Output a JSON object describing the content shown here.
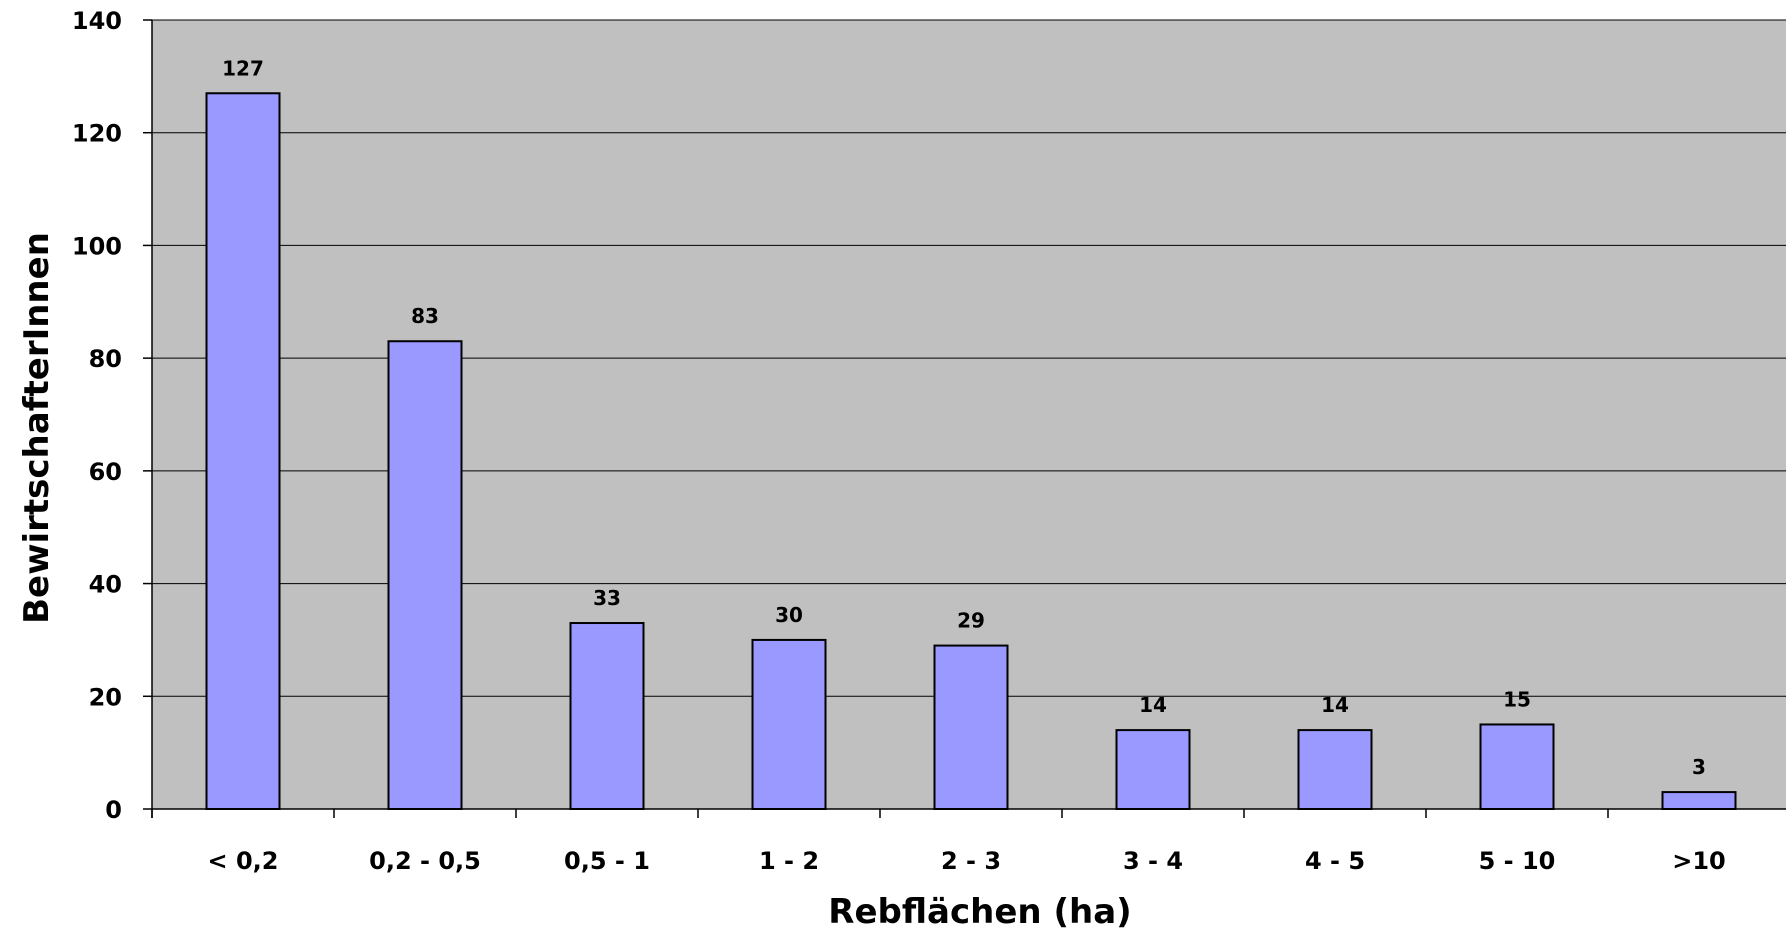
{
  "chart_data": {
    "type": "bar",
    "categories": [
      "< 0,2",
      "0,2 - 0,5",
      "0,5 - 1",
      "1 - 2",
      "2 - 3",
      "3 - 4",
      "4 - 5",
      "5 - 10",
      ">10"
    ],
    "values": [
      127,
      83,
      33,
      30,
      29,
      14,
      14,
      15,
      3
    ],
    "data_labels": [
      "127",
      "83",
      "33",
      "30",
      "29",
      "14",
      "14",
      "15",
      "3"
    ],
    "xlabel": "Rebflächen (ha)",
    "ylabel": "BewirtschafterInnen",
    "ylim": [
      0,
      140
    ],
    "yticks": [
      0,
      20,
      40,
      60,
      80,
      100,
      120,
      140
    ],
    "grid": true,
    "legend": "none",
    "colors": {
      "plot_background": "#c0c0c0",
      "bar_fill": "#9999ff",
      "bar_stroke": "#000000",
      "gridline": "#000000"
    }
  }
}
